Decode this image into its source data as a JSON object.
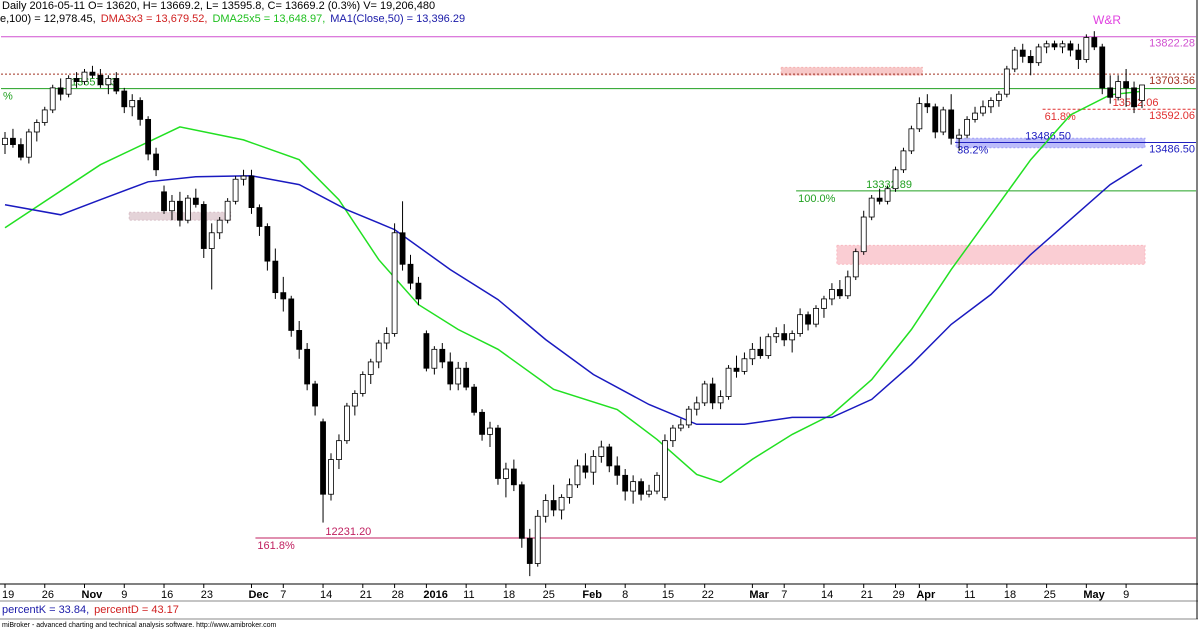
{
  "header": {
    "line1": "Daily 2016-05-11 O= 13620, H= 13669.2, L= 13595.8, C= 13669.2 (0.3%) V= 19,206,480",
    "line2": [
      {
        "text": "e,100) = 12,978.45,",
        "color": "#000000"
      },
      {
        "text": "DMA3x3 = 13,679.52,",
        "color": "#d02020"
      },
      {
        "text": "DMA25x5 = 13,648.97,",
        "color": "#1fbf1f"
      },
      {
        "text": "MA1(Close,50) = 13,396.29",
        "color": "#1a1aa8"
      }
    ]
  },
  "footer": {
    "stoch": [
      {
        "text": "percentK = 33.84,",
        "color": "#1a1aa8"
      },
      {
        "text": "percentD = 43.17",
        "color": "#d02020"
      }
    ],
    "credit": "miBroker - advanced charting and technical analysis software. http://www.amibroker.com"
  },
  "chart_data": {
    "type": "candlestick",
    "ylim": [
      12085,
      13939
    ],
    "up_color": "#ffffff",
    "down_color": "#000000",
    "categories": [
      "19",
      null,
      null,
      null,
      null,
      "26",
      null,
      null,
      null,
      null,
      "Nov",
      null,
      null,
      null,
      null,
      "9",
      null,
      null,
      null,
      null,
      "16",
      null,
      null,
      null,
      null,
      "23",
      null,
      null,
      null,
      null,
      null,
      "Dec",
      null,
      null,
      null,
      "7",
      null,
      null,
      null,
      null,
      "14",
      null,
      null,
      null,
      null,
      "21",
      null,
      null,
      null,
      "28",
      null,
      null,
      null,
      "2016",
      null,
      null,
      null,
      null,
      "11",
      null,
      null,
      null,
      null,
      "18",
      null,
      null,
      null,
      null,
      "25",
      null,
      null,
      null,
      null,
      "Feb",
      null,
      null,
      null,
      null,
      "8",
      null,
      null,
      null,
      null,
      "15",
      null,
      null,
      null,
      null,
      "22",
      null,
      null,
      null,
      null,
      null,
      "Mar",
      null,
      null,
      null,
      "7",
      null,
      null,
      null,
      null,
      "14",
      null,
      null,
      null,
      null,
      "21",
      null,
      null,
      null,
      "29",
      null,
      null,
      "Apr",
      null,
      null,
      null,
      null,
      null,
      "11",
      null,
      null,
      null,
      null,
      "18",
      null,
      null,
      null,
      null,
      "25",
      null,
      null,
      null,
      null,
      "May",
      null,
      null,
      null,
      null,
      "9",
      null,
      null
    ],
    "ohlc": [
      [
        13480,
        13520,
        13450,
        13500
      ],
      [
        13500,
        13530,
        13470,
        13480
      ],
      [
        13480,
        13500,
        13430,
        13440
      ],
      [
        13440,
        13530,
        13420,
        13520
      ],
      [
        13520,
        13560,
        13490,
        13550
      ],
      [
        13550,
        13600,
        13540,
        13590
      ],
      [
        13590,
        13670,
        13580,
        13660
      ],
      [
        13660,
        13690,
        13620,
        13640
      ],
      [
        13640,
        13700,
        13630,
        13690
      ],
      [
        13690,
        13710,
        13660,
        13680
      ],
      [
        13680,
        13720,
        13670,
        13710
      ],
      [
        13710,
        13730,
        13690,
        13700
      ],
      [
        13700,
        13720,
        13660,
        13670
      ],
      [
        13670,
        13700,
        13640,
        13690
      ],
      [
        13690,
        13710,
        13640,
        13650
      ],
      [
        13650,
        13660,
        13580,
        13600
      ],
      [
        13600,
        13640,
        13570,
        13620
      ],
      [
        13620,
        13630,
        13540,
        13560
      ],
      [
        13560,
        13570,
        13430,
        13450
      ],
      [
        13450,
        13470,
        13380,
        13400
      ],
      [
        13330,
        13350,
        13260,
        13270
      ],
      [
        13270,
        13320,
        13240,
        13300
      ],
      [
        13300,
        13330,
        13220,
        13240
      ],
      [
        13240,
        13320,
        13230,
        13310
      ],
      [
        13310,
        13340,
        13280,
        13290
      ],
      [
        13290,
        13300,
        13120,
        13150
      ],
      [
        13150,
        13230,
        13020,
        13200
      ],
      [
        13200,
        13250,
        13180,
        13240
      ],
      [
        13240,
        13310,
        13230,
        13300
      ],
      [
        13300,
        13380,
        13290,
        13370
      ],
      [
        13370,
        13400,
        13350,
        13380
      ],
      [
        13380,
        13400,
        13260,
        13280
      ],
      [
        13280,
        13290,
        13190,
        13220
      ],
      [
        13220,
        13230,
        13080,
        13110
      ],
      [
        13110,
        13150,
        12990,
        13010
      ],
      [
        13010,
        13060,
        12950,
        12990
      ],
      [
        12990,
        13000,
        12870,
        12890
      ],
      [
        12890,
        12920,
        12800,
        12830
      ],
      [
        12830,
        12850,
        12700,
        12720
      ],
      [
        12720,
        12730,
        12620,
        12650
      ],
      [
        12600,
        12610,
        12280,
        12370
      ],
      [
        12370,
        12500,
        12350,
        12480
      ],
      [
        12480,
        12560,
        12450,
        12540
      ],
      [
        12540,
        12660,
        12530,
        12650
      ],
      [
        12650,
        12700,
        12620,
        12690
      ],
      [
        12690,
        12760,
        12680,
        12750
      ],
      [
        12750,
        12800,
        12720,
        12790
      ],
      [
        12790,
        12860,
        12770,
        12850
      ],
      [
        12850,
        12900,
        12830,
        12880
      ],
      [
        12880,
        13230,
        12870,
        13200
      ],
      [
        13200,
        13300,
        13080,
        13100
      ],
      [
        13100,
        13130,
        13020,
        13040
      ],
      [
        13040,
        13060,
        12970,
        12990
      ],
      [
        12880,
        12890,
        12760,
        12770
      ],
      [
        12770,
        12840,
        12750,
        12830
      ],
      [
        12830,
        12850,
        12770,
        12790
      ],
      [
        12790,
        12820,
        12700,
        12720
      ],
      [
        12720,
        12790,
        12700,
        12770
      ],
      [
        12770,
        12790,
        12700,
        12710
      ],
      [
        12710,
        12720,
        12620,
        12630
      ],
      [
        12630,
        12640,
        12540,
        12560
      ],
      [
        12560,
        12600,
        12520,
        12580
      ],
      [
        12580,
        12590,
        12400,
        12420
      ],
      [
        12420,
        12470,
        12360,
        12450
      ],
      [
        12450,
        12480,
        12380,
        12400
      ],
      [
        12400,
        12410,
        12200,
        12230
      ],
      [
        12230,
        12260,
        12110,
        12150
      ],
      [
        12150,
        12320,
        12140,
        12300
      ],
      [
        12300,
        12370,
        12280,
        12350
      ],
      [
        12350,
        12400,
        12300,
        12320
      ],
      [
        12320,
        12370,
        12290,
        12360
      ],
      [
        12360,
        12420,
        12340,
        12400
      ],
      [
        12400,
        12480,
        12390,
        12460
      ],
      [
        12460,
        12500,
        12420,
        12440
      ],
      [
        12440,
        12510,
        12400,
        12490
      ],
      [
        12490,
        12540,
        12470,
        12520
      ],
      [
        12520,
        12530,
        12440,
        12460
      ],
      [
        12460,
        12490,
        12400,
        12430
      ],
      [
        12430,
        12450,
        12350,
        12380
      ],
      [
        12380,
        12430,
        12340,
        12410
      ],
      [
        12410,
        12420,
        12350,
        12370
      ],
      [
        12370,
        12400,
        12360,
        12380
      ],
      [
        12380,
        12440,
        12370,
        12430
      ],
      [
        12360,
        12560,
        12350,
        12540
      ],
      [
        12540,
        12590,
        12520,
        12580
      ],
      [
        12580,
        12610,
        12570,
        12590
      ],
      [
        12590,
        12650,
        12580,
        12640
      ],
      [
        12640,
        12680,
        12620,
        12660
      ],
      [
        12660,
        12730,
        12650,
        12720
      ],
      [
        12720,
        12740,
        12640,
        12660
      ],
      [
        12660,
        12700,
        12640,
        12680
      ],
      [
        12680,
        12780,
        12670,
        12770
      ],
      [
        12770,
        12810,
        12740,
        12760
      ],
      [
        12760,
        12820,
        12750,
        12800
      ],
      [
        12800,
        12850,
        12780,
        12830
      ],
      [
        12830,
        12870,
        12800,
        12810
      ],
      [
        12810,
        12880,
        12800,
        12870
      ],
      [
        12870,
        12900,
        12850,
        12880
      ],
      [
        12880,
        12910,
        12840,
        12860
      ],
      [
        12860,
        12890,
        12820,
        12880
      ],
      [
        12880,
        12960,
        12870,
        12940
      ],
      [
        12940,
        12950,
        12890,
        12910
      ],
      [
        12910,
        12970,
        12900,
        12960
      ],
      [
        12960,
        13000,
        12930,
        12990
      ],
      [
        12990,
        13040,
        12970,
        13020
      ],
      [
        13020,
        13050,
        12990,
        13000
      ],
      [
        13000,
        13080,
        12990,
        13060
      ],
      [
        13060,
        13150,
        13050,
        13140
      ],
      [
        13140,
        13270,
        13130,
        13250
      ],
      [
        13250,
        13320,
        13240,
        13310
      ],
      [
        13310,
        13340,
        13290,
        13300
      ],
      [
        13300,
        13350,
        13290,
        13340
      ],
      [
        13340,
        13410,
        13330,
        13400
      ],
      [
        13400,
        13470,
        13390,
        13460
      ],
      [
        13460,
        13540,
        13450,
        13530
      ],
      [
        13530,
        13630,
        13520,
        13610
      ],
      [
        13610,
        13640,
        13580,
        13600
      ],
      [
        13600,
        13610,
        13500,
        13520
      ],
      [
        13520,
        13600,
        13510,
        13590
      ],
      [
        13590,
        13640,
        13480,
        13500
      ],
      [
        13500,
        13530,
        13460,
        13510
      ],
      [
        13510,
        13570,
        13500,
        13560
      ],
      [
        13560,
        13600,
        13550,
        13580
      ],
      [
        13580,
        13620,
        13570,
        13600
      ],
      [
        13600,
        13630,
        13580,
        13620
      ],
      [
        13620,
        13650,
        13600,
        13640
      ],
      [
        13640,
        13730,
        13630,
        13720
      ],
      [
        13720,
        13790,
        13710,
        13780
      ],
      [
        13780,
        13800,
        13740,
        13760
      ],
      [
        13760,
        13780,
        13700,
        13740
      ],
      [
        13740,
        13800,
        13730,
        13790
      ],
      [
        13790,
        13810,
        13770,
        13800
      ],
      [
        13800,
        13810,
        13780,
        13790
      ],
      [
        13790,
        13810,
        13770,
        13800
      ],
      [
        13800,
        13810,
        13760,
        13780
      ],
      [
        13780,
        13800,
        13720,
        13750
      ],
      [
        13750,
        13830,
        13740,
        13820
      ],
      [
        13820,
        13840,
        13780,
        13790
      ],
      [
        13790,
        13800,
        13640,
        13660
      ],
      [
        13660,
        13700,
        13610,
        13630
      ],
      [
        13630,
        13700,
        13620,
        13680
      ],
      [
        13680,
        13720,
        13600,
        13660
      ],
      [
        13660,
        13680,
        13580,
        13600
      ],
      [
        13620,
        13669.2,
        13595.8,
        13669.2
      ]
    ],
    "overlays": [
      {
        "color": "#22e022",
        "x": [
          0,
          12,
          22,
          30,
          37,
          42,
          47,
          52,
          57,
          62,
          69,
          77,
          82,
          87,
          90,
          94,
          99,
          104,
          109,
          114,
          119,
          124,
          129,
          134,
          139,
          143
        ],
        "values": [
          13216,
          13416,
          13536,
          13495,
          13432,
          13305,
          13115,
          12972,
          12893,
          12830,
          12703,
          12639,
          12544,
          12433,
          12408,
          12481,
          12560,
          12623,
          12734,
          12893,
          13083,
          13257,
          13432,
          13574,
          13638,
          13649
        ]
      },
      {
        "color": "#1a1ac0",
        "x": [
          0,
          7,
          12,
          18,
          24,
          31,
          37,
          43,
          49,
          56,
          62,
          68,
          74,
          81,
          87,
          93,
          99,
          104,
          109,
          114,
          119,
          124,
          129,
          134,
          139,
          143
        ],
        "values": [
          13289,
          13257,
          13305,
          13362,
          13378,
          13381,
          13353,
          13273,
          13210,
          13083,
          12988,
          12861,
          12750,
          12655,
          12592,
          12592,
          12614,
          12614,
          12671,
          12782,
          12909,
          13004,
          13131,
          13242,
          13353,
          13416
        ]
      }
    ],
    "levels": [
      {
        "value": 13822.28,
        "color": "#d050d0",
        "start": 0
      },
      {
        "value": 13703.56,
        "color": "#a03020",
        "start": 0
      },
      {
        "value": 13592.06,
        "tag": "61.8%",
        "color": "#e03030",
        "start": 131
      },
      {
        "value": 13486.5,
        "label": "13486.50",
        "tag": "38.2%",
        "color": "#2020c0",
        "start": 120
      },
      {
        "value": 13332.89,
        "tag": "100.0%",
        "color": "#20a020",
        "start": 100
      },
      {
        "value": 13657.53,
        "tag": "%",
        "color": "#20a020",
        "start": 0
      },
      {
        "value": 12231.2,
        "label": "12231.20",
        "tag": "161.8%",
        "color": "#c02060",
        "start": 32
      }
    ],
    "zones": [
      {
        "low": 13100,
        "high": 13160,
        "start": 105,
        "end": 143,
        "color": "#f8b8c0"
      },
      {
        "low": 13470,
        "high": 13500,
        "start": 120,
        "end": 143,
        "color": "#a0a0f8"
      },
      {
        "low": 13700,
        "high": 13725,
        "start": 98,
        "end": 115,
        "color": "#f4b0b0"
      },
      {
        "low": 13240,
        "high": 13265,
        "start": 16,
        "end": 28,
        "color": "#d8c0c8"
      }
    ],
    "annotation": "W&R"
  }
}
